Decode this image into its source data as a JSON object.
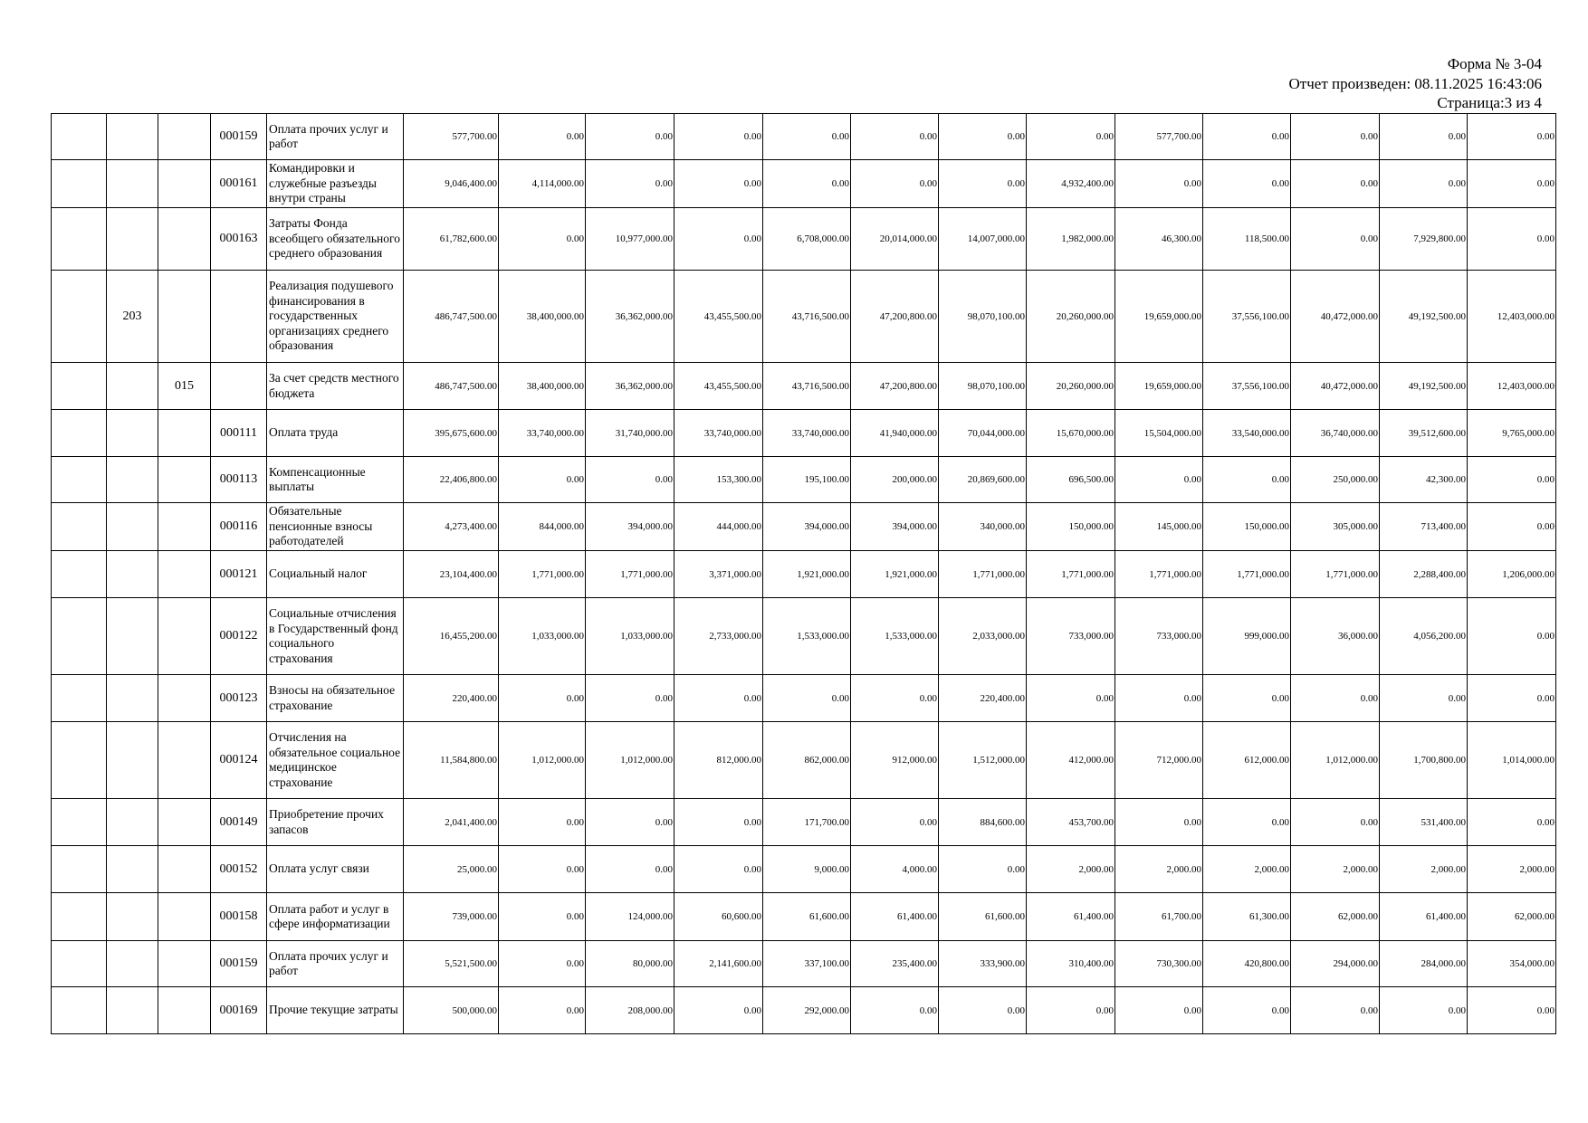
{
  "header": {
    "form": "Форма № 3-04",
    "generated": "Отчет произведен: 08.11.2025 16:43:06",
    "page": "Страница:3 из 4"
  },
  "table": {
    "rows": [
      {
        "code": "000159",
        "name": "Оплата прочих услуг и работ",
        "values": [
          "577,700.00",
          "0.00",
          "0.00",
          "0.00",
          "0.00",
          "0.00",
          "0.00",
          "0.00",
          "577,700.00",
          "0.00",
          "0.00",
          "0.00",
          "0.00"
        ]
      },
      {
        "code": "000161",
        "name": "Командировки и служебные разъезды внутри страны",
        "values": [
          "9,046,400.00",
          "4,114,000.00",
          "0.00",
          "0.00",
          "0.00",
          "0.00",
          "0.00",
          "4,932,400.00",
          "0.00",
          "0.00",
          "0.00",
          "0.00",
          "0.00"
        ]
      },
      {
        "code": "000163",
        "name": "Затраты Фонда всеобщего обязательного среднего образования",
        "values": [
          "61,782,600.00",
          "0.00",
          "10,977,000.00",
          "0.00",
          "6,708,000.00",
          "20,014,000.00",
          "14,007,000.00",
          "1,982,000.00",
          "46,300.00",
          "118,500.00",
          "0.00",
          "7,929,800.00",
          "0.00"
        ]
      },
      {
        "program": "203",
        "name": "Реализация подушевого финансирования в государственных организациях среднего образования",
        "values": [
          "486,747,500.00",
          "38,400,000.00",
          "36,362,000.00",
          "43,455,500.00",
          "43,716,500.00",
          "47,200,800.00",
          "98,070,100.00",
          "20,260,000.00",
          "19,659,000.00",
          "37,556,100.00",
          "40,472,000.00",
          "49,192,500.00",
          "12,403,000.00"
        ]
      },
      {
        "subprogram": "015",
        "name": "За счет средств местного бюджета",
        "values": [
          "486,747,500.00",
          "38,400,000.00",
          "36,362,000.00",
          "43,455,500.00",
          "43,716,500.00",
          "47,200,800.00",
          "98,070,100.00",
          "20,260,000.00",
          "19,659,000.00",
          "37,556,100.00",
          "40,472,000.00",
          "49,192,500.00",
          "12,403,000.00"
        ]
      },
      {
        "code": "000111",
        "name": "Оплата труда",
        "values": [
          "395,675,600.00",
          "33,740,000.00",
          "31,740,000.00",
          "33,740,000.00",
          "33,740,000.00",
          "41,940,000.00",
          "70,044,000.00",
          "15,670,000.00",
          "15,504,000.00",
          "33,540,000.00",
          "36,740,000.00",
          "39,512,600.00",
          "9,765,000.00"
        ]
      },
      {
        "code": "000113",
        "name": "Компенсационные выплаты",
        "values": [
          "22,406,800.00",
          "0.00",
          "0.00",
          "153,300.00",
          "195,100.00",
          "200,000.00",
          "20,869,600.00",
          "696,500.00",
          "0.00",
          "0.00",
          "250,000.00",
          "42,300.00",
          "0.00"
        ]
      },
      {
        "code": "000116",
        "name": "Обязательные пенсионные взносы работодателей",
        "values": [
          "4,273,400.00",
          "844,000.00",
          "394,000.00",
          "444,000.00",
          "394,000.00",
          "394,000.00",
          "340,000.00",
          "150,000.00",
          "145,000.00",
          "150,000.00",
          "305,000.00",
          "713,400.00",
          "0.00"
        ]
      },
      {
        "code": "000121",
        "name": "Социальный налог",
        "values": [
          "23,104,400.00",
          "1,771,000.00",
          "1,771,000.00",
          "3,371,000.00",
          "1,921,000.00",
          "1,921,000.00",
          "1,771,000.00",
          "1,771,000.00",
          "1,771,000.00",
          "1,771,000.00",
          "1,771,000.00",
          "2,288,400.00",
          "1,206,000.00"
        ]
      },
      {
        "code": "000122",
        "name": "Социальные отчисления в Государственный фонд социального страхования",
        "values": [
          "16,455,200.00",
          "1,033,000.00",
          "1,033,000.00",
          "2,733,000.00",
          "1,533,000.00",
          "1,533,000.00",
          "2,033,000.00",
          "733,000.00",
          "733,000.00",
          "999,000.00",
          "36,000.00",
          "4,056,200.00",
          "0.00"
        ]
      },
      {
        "code": "000123",
        "name": "Взносы на обязательное страхование",
        "values": [
          "220,400.00",
          "0.00",
          "0.00",
          "0.00",
          "0.00",
          "0.00",
          "220,400.00",
          "0.00",
          "0.00",
          "0.00",
          "0.00",
          "0.00",
          "0.00"
        ]
      },
      {
        "code": "000124",
        "name": "Отчисления на обязательное социальное медицинское страхование",
        "values": [
          "11,584,800.00",
          "1,012,000.00",
          "1,012,000.00",
          "812,000.00",
          "862,000.00",
          "912,000.00",
          "1,512,000.00",
          "412,000.00",
          "712,000.00",
          "612,000.00",
          "1,012,000.00",
          "1,700,800.00",
          "1,014,000.00"
        ]
      },
      {
        "code": "000149",
        "name": "Приобретение прочих запасов",
        "values": [
          "2,041,400.00",
          "0.00",
          "0.00",
          "0.00",
          "171,700.00",
          "0.00",
          "884,600.00",
          "453,700.00",
          "0.00",
          "0.00",
          "0.00",
          "531,400.00",
          "0.00"
        ]
      },
      {
        "code": "000152",
        "name": "Оплата услуг связи",
        "values": [
          "25,000.00",
          "0.00",
          "0.00",
          "0.00",
          "9,000.00",
          "4,000.00",
          "0.00",
          "2,000.00",
          "2,000.00",
          "2,000.00",
          "2,000.00",
          "2,000.00",
          "2,000.00"
        ]
      },
      {
        "code": "000158",
        "name": "Оплата работ  и услуг в сфере информатизации",
        "values": [
          "739,000.00",
          "0.00",
          "124,000.00",
          "60,600.00",
          "61,600.00",
          "61,400.00",
          "61,600.00",
          "61,400.00",
          "61,700.00",
          "61,300.00",
          "62,000.00",
          "61,400.00",
          "62,000.00"
        ]
      },
      {
        "code": "000159",
        "name": "Оплата прочих услуг и работ",
        "values": [
          "5,521,500.00",
          "0.00",
          "80,000.00",
          "2,141,600.00",
          "337,100.00",
          "235,400.00",
          "333,900.00",
          "310,400.00",
          "730,300.00",
          "420,800.00",
          "294,000.00",
          "284,000.00",
          "354,000.00"
        ]
      },
      {
        "code": "000169",
        "name": "Прочие текущие затраты",
        "values": [
          "500,000.00",
          "0.00",
          "208,000.00",
          "0.00",
          "292,000.00",
          "0.00",
          "0.00",
          "0.00",
          "0.00",
          "0.00",
          "0.00",
          "0.00",
          "0.00"
        ]
      }
    ]
  }
}
